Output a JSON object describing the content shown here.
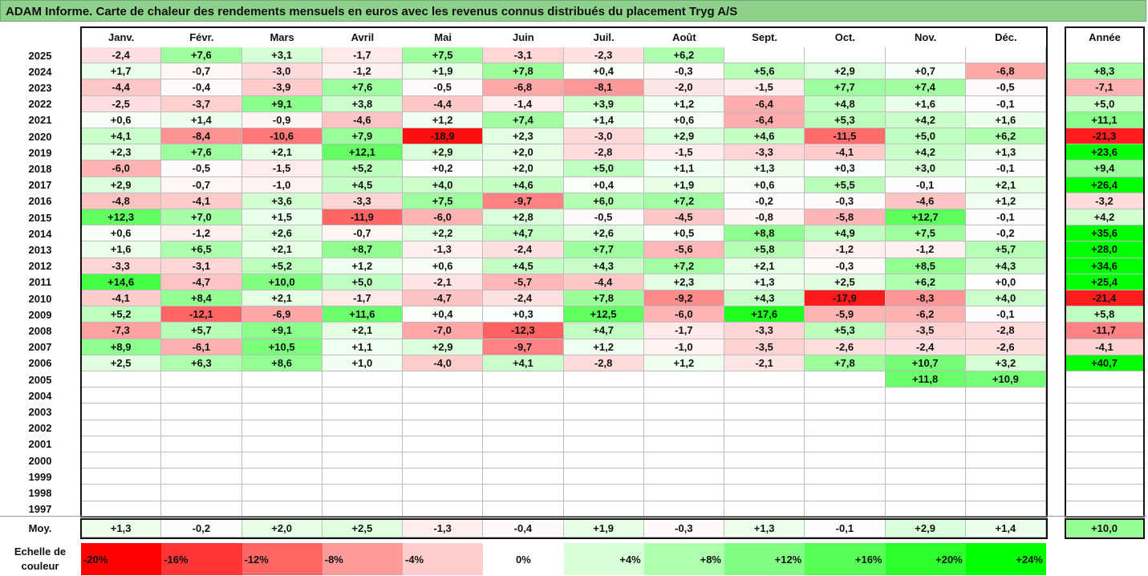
{
  "title": "ADAM Informe. Carte de chaleur des rendements mensuels en euros avec les revenus connus distribués du placement Tryg A/S",
  "chart_data": {
    "type": "heatmap",
    "months": [
      "Janv.",
      "Févr.",
      "Mars",
      "Avril",
      "Mai",
      "Juin",
      "Juil.",
      "Août",
      "Sept.",
      "Oct.",
      "Nov.",
      "Déc."
    ],
    "year_header": "Année",
    "rows": [
      {
        "year": "2025",
        "values": [
          "-2,4",
          "+7,6",
          "+3,1",
          "-1,7",
          "+7,5",
          "-3,1",
          "-2,3",
          "+6,2",
          "",
          "",
          "",
          ""
        ],
        "annual": ""
      },
      {
        "year": "2024",
        "values": [
          "+1,7",
          "-0,7",
          "-3,0",
          "-1,2",
          "+1,9",
          "+7,8",
          "+0,4",
          "-0,3",
          "+5,6",
          "+2,9",
          "+0,7",
          "-6,8"
        ],
        "annual": "+8,3"
      },
      {
        "year": "2023",
        "values": [
          "-4,4",
          "-0,4",
          "-3,9",
          "+7,6",
          "-0,5",
          "-6,8",
          "-8,1",
          "-2,0",
          "-1,5",
          "+7,7",
          "+7,4",
          "-0,5"
        ],
        "annual": "-7,1"
      },
      {
        "year": "2022",
        "values": [
          "-2,5",
          "-3,7",
          "+9,1",
          "+3,8",
          "-4,4",
          "-1,4",
          "+3,9",
          "+1,2",
          "-6,4",
          "+4,8",
          "+1,6",
          "-0,1"
        ],
        "annual": "+5,0"
      },
      {
        "year": "2021",
        "values": [
          "+0,6",
          "+1,4",
          "-0,9",
          "-4,6",
          "+1,2",
          "+7,4",
          "+1,4",
          "+0,6",
          "-6,4",
          "+5,3",
          "+4,2",
          "+1,6"
        ],
        "annual": "+11,1"
      },
      {
        "year": "2020",
        "values": [
          "+4,1",
          "-8,4",
          "-10,6",
          "+7,9",
          "-18,9",
          "+2,3",
          "-3,0",
          "+2,9",
          "+4,6",
          "-11,5",
          "+5,0",
          "+6,2"
        ],
        "annual": "-21,3"
      },
      {
        "year": "2019",
        "values": [
          "+2,3",
          "+7,6",
          "+2,1",
          "+12,1",
          "+2,9",
          "+2,0",
          "-2,8",
          "-1,5",
          "-3,3",
          "-4,1",
          "+4,2",
          "+1,3"
        ],
        "annual": "+23,6"
      },
      {
        "year": "2018",
        "values": [
          "-6,0",
          "-0,5",
          "-1,5",
          "+5,2",
          "+0,2",
          "+2,0",
          "+5,0",
          "+1,1",
          "+1,3",
          "+0,3",
          "+3,0",
          "-0,1"
        ],
        "annual": "+9,4"
      },
      {
        "year": "2017",
        "values": [
          "+2,9",
          "-0,7",
          "-1,0",
          "+4,5",
          "+4,0",
          "+4,6",
          "+0,4",
          "+1,9",
          "+0,6",
          "+5,5",
          "-0,1",
          "+2,1"
        ],
        "annual": "+26,4"
      },
      {
        "year": "2016",
        "values": [
          "-4,8",
          "-4,1",
          "+3,6",
          "-3,3",
          "+7,5",
          "-9,7",
          "+6,0",
          "+7,2",
          "-0,2",
          "-0,3",
          "-4,6",
          "+1,2"
        ],
        "annual": "-3,2"
      },
      {
        "year": "2015",
        "values": [
          "+12,3",
          "+7,0",
          "+1,5",
          "-11,9",
          "-6,0",
          "+2,8",
          "-0,5",
          "-4,5",
          "-0,8",
          "-5,8",
          "+12,7",
          "-0,1"
        ],
        "annual": "+4,2"
      },
      {
        "year": "2014",
        "values": [
          "+0,6",
          "-1,2",
          "+2,6",
          "-0,7",
          "+2,2",
          "+4,7",
          "+2,6",
          "+0,5",
          "+8,8",
          "+4,9",
          "+7,5",
          "-0,2"
        ],
        "annual": "+35,6"
      },
      {
        "year": "2013",
        "values": [
          "+1,6",
          "+6,5",
          "+2,1",
          "+8,7",
          "-1,3",
          "-2,4",
          "+7,7",
          "-5,6",
          "+5,8",
          "-1,2",
          "-1,2",
          "+5,7"
        ],
        "annual": "+28,0"
      },
      {
        "year": "2012",
        "values": [
          "-3,3",
          "-3,1",
          "+5,2",
          "+1,2",
          "+0,6",
          "+4,5",
          "+4,3",
          "+7,2",
          "+2,1",
          "-0,3",
          "+8,5",
          "+4,3"
        ],
        "annual": "+34,6"
      },
      {
        "year": "2011",
        "values": [
          "+14,6",
          "-4,7",
          "+10,0",
          "+5,0",
          "-2,1",
          "-5,7",
          "-4,4",
          "+2,3",
          "+1,3",
          "+2,5",
          "+6,2",
          "+0,0"
        ],
        "annual": "+25,4"
      },
      {
        "year": "2010",
        "values": [
          "-4,1",
          "+8,4",
          "+2,1",
          "-1,7",
          "-4,7",
          "-2,4",
          "+7,8",
          "-9,2",
          "+4,3",
          "-17,9",
          "-8,3",
          "+4,0"
        ],
        "annual": "-21,4"
      },
      {
        "year": "2009",
        "values": [
          "+5,2",
          "-12,1",
          "-6,9",
          "+11,6",
          "+0,4",
          "+0,3",
          "+12,5",
          "-6,0",
          "+17,6",
          "-5,9",
          "-6,2",
          "-0,1"
        ],
        "annual": "+5,8"
      },
      {
        "year": "2008",
        "values": [
          "-7,3",
          "+5,7",
          "+9,1",
          "+2,1",
          "-7,0",
          "-12,3",
          "+4,7",
          "-1,7",
          "-3,3",
          "+5,3",
          "-3,5",
          "-2,8"
        ],
        "annual": "-11,7"
      },
      {
        "year": "2007",
        "values": [
          "+8,9",
          "-6,1",
          "+10,5",
          "+1,1",
          "+2,9",
          "-9,7",
          "+1,2",
          "-1,0",
          "-3,5",
          "-2,6",
          "-2,4",
          "-2,6"
        ],
        "annual": "-4,1"
      },
      {
        "year": "2006",
        "values": [
          "+2,5",
          "+6,3",
          "+8,6",
          "+1,0",
          "-4,0",
          "+4,1",
          "-2,8",
          "+1,2",
          "-2,1",
          "+7,8",
          "+10,7",
          "+3,2"
        ],
        "annual": "+40,7"
      },
      {
        "year": "2005",
        "values": [
          "",
          "",
          "",
          "",
          "",
          "",
          "",
          "",
          "",
          "",
          "+11,8",
          "+10,9"
        ],
        "annual": ""
      },
      {
        "year": "2004",
        "values": [
          "",
          "",
          "",
          "",
          "",
          "",
          "",
          "",
          "",
          "",
          "",
          ""
        ],
        "annual": ""
      },
      {
        "year": "2003",
        "values": [
          "",
          "",
          "",
          "",
          "",
          "",
          "",
          "",
          "",
          "",
          "",
          ""
        ],
        "annual": ""
      },
      {
        "year": "2002",
        "values": [
          "",
          "",
          "",
          "",
          "",
          "",
          "",
          "",
          "",
          "",
          "",
          ""
        ],
        "annual": ""
      },
      {
        "year": "2001",
        "values": [
          "",
          "",
          "",
          "",
          "",
          "",
          "",
          "",
          "",
          "",
          "",
          ""
        ],
        "annual": ""
      },
      {
        "year": "2000",
        "values": [
          "",
          "",
          "",
          "",
          "",
          "",
          "",
          "",
          "",
          "",
          "",
          ""
        ],
        "annual": ""
      },
      {
        "year": "1999",
        "values": [
          "",
          "",
          "",
          "",
          "",
          "",
          "",
          "",
          "",
          "",
          "",
          ""
        ],
        "annual": ""
      },
      {
        "year": "1998",
        "values": [
          "",
          "",
          "",
          "",
          "",
          "",
          "",
          "",
          "",
          "",
          "",
          ""
        ],
        "annual": ""
      },
      {
        "year": "1997",
        "values": [
          "",
          "",
          "",
          "",
          "",
          "",
          "",
          "",
          "",
          "",
          "",
          ""
        ],
        "annual": ""
      }
    ],
    "average": {
      "label": "Moy.",
      "values": [
        "+1,3",
        "-0,2",
        "+2,0",
        "+2,5",
        "-1,3",
        "-0,4",
        "+1,9",
        "-0,3",
        "+1,3",
        "-0,1",
        "+2,9",
        "+1,4"
      ],
      "annual": "+10,0"
    },
    "color_scale": {
      "label": "Echelle de couleur",
      "stops": [
        {
          "label": "-20%",
          "color": "#ff0000"
        },
        {
          "label": "-16%",
          "color": "#ff3434"
        },
        {
          "label": "-12%",
          "color": "#ff6767"
        },
        {
          "label": "-8%",
          "color": "#ff9a9a"
        },
        {
          "label": "-4%",
          "color": "#ffcdcd"
        },
        {
          "label": "0%",
          "color": "#ffffff"
        },
        {
          "label": "+4%",
          "color": "#d8ffd8"
        },
        {
          "label": "+8%",
          "color": "#adffad"
        },
        {
          "label": "+12%",
          "color": "#82ff82"
        },
        {
          "label": "+16%",
          "color": "#57ff57"
        },
        {
          "label": "+20%",
          "color": "#2cff2c"
        },
        {
          "label": "+24%",
          "color": "#00ff00"
        }
      ]
    }
  }
}
